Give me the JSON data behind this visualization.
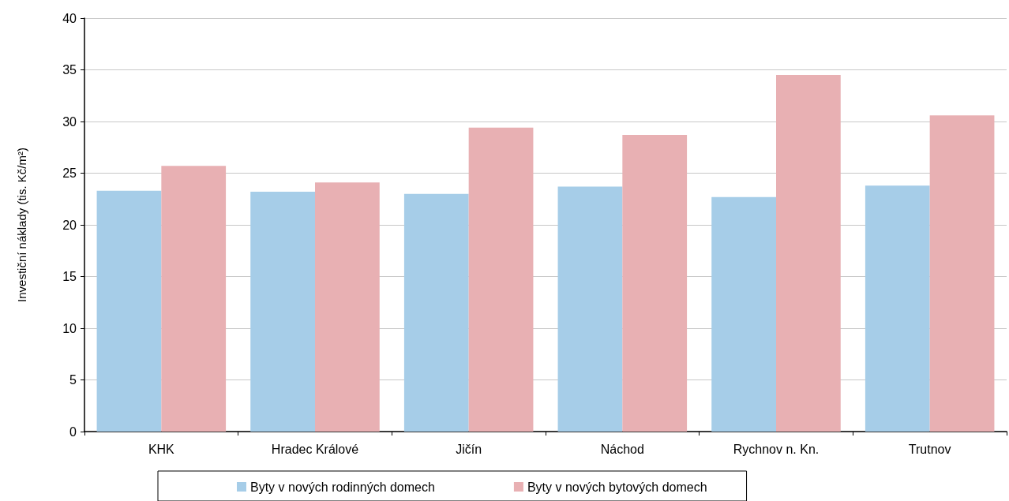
{
  "chart_data": {
    "type": "bar",
    "ylabel": "Investiční náklady (tis. Kč/m²)",
    "categories": [
      "KHK",
      "Hradec Králové",
      "Jičín",
      "Náchod",
      "Rychnov n. Kn.",
      "Trutnov"
    ],
    "series": [
      {
        "name": "Byty v nových rodinných domech",
        "color": "#a6cde8",
        "values": [
          23.3,
          23.2,
          23.0,
          23.7,
          22.7,
          23.8
        ]
      },
      {
        "name": "Byty v nových bytových domech",
        "color": "#e8b0b3",
        "values": [
          25.7,
          24.1,
          29.4,
          28.7,
          34.5,
          30.6
        ]
      }
    ],
    "ylim": [
      0,
      40
    ],
    "yticks": [
      0,
      5,
      10,
      15,
      20,
      25,
      30,
      35,
      40
    ],
    "grid": "y",
    "legend": "bottom"
  }
}
